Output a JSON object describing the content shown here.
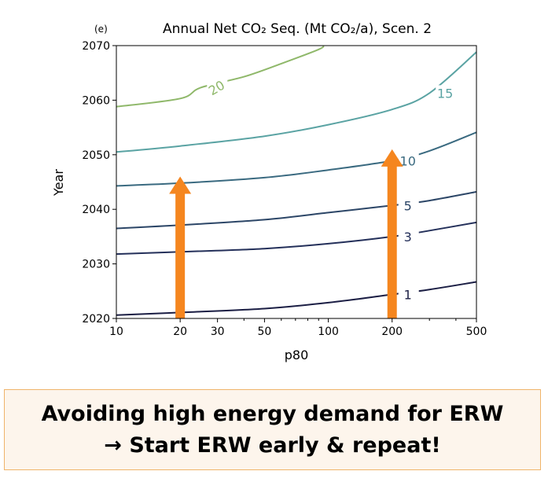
{
  "chart_data": {
    "type": "contour",
    "panel_label": "(e)",
    "title": "Annual Net CO₂ Seq. (Mt CO₂/a), Scen. 2",
    "xlabel": "p80",
    "ylabel": "Year",
    "xscale": "log",
    "xlim": [
      10,
      500
    ],
    "ylim": [
      2020,
      2070
    ],
    "xticks": [
      10,
      20,
      30,
      50,
      100,
      200,
      500
    ],
    "yticks": [
      2020,
      2030,
      2040,
      2050,
      2060,
      2070
    ],
    "contours": [
      {
        "level": "1",
        "color": "#1b1e44",
        "points": [
          [
            10,
            2020.6
          ],
          [
            20,
            2021.1
          ],
          [
            50,
            2021.8
          ],
          [
            100,
            2022.9
          ],
          [
            200,
            2024.4
          ],
          [
            300,
            2025.3
          ],
          [
            500,
            2026.7
          ]
        ]
      },
      {
        "level": "3",
        "color": "#24305a",
        "points": [
          [
            10,
            2031.8
          ],
          [
            20,
            2032.2
          ],
          [
            50,
            2032.8
          ],
          [
            100,
            2033.7
          ],
          [
            200,
            2035.0
          ],
          [
            300,
            2036.1
          ],
          [
            500,
            2037.6
          ]
        ]
      },
      {
        "level": "5",
        "color": "#2c4667",
        "points": [
          [
            10,
            2036.5
          ],
          [
            20,
            2037.1
          ],
          [
            50,
            2038.1
          ],
          [
            100,
            2039.4
          ],
          [
            200,
            2040.7
          ],
          [
            300,
            2041.6
          ],
          [
            500,
            2043.2
          ]
        ]
      },
      {
        "level": "10",
        "color": "#3a6a80",
        "points": [
          [
            10,
            2044.3
          ],
          [
            20,
            2044.8
          ],
          [
            50,
            2045.8
          ],
          [
            100,
            2047.2
          ],
          [
            200,
            2048.9
          ],
          [
            300,
            2050.7
          ],
          [
            500,
            2054.1
          ]
        ]
      },
      {
        "level": "15",
        "color": "#5aa3a3",
        "points": [
          [
            10,
            2050.5
          ],
          [
            20,
            2051.6
          ],
          [
            50,
            2053.4
          ],
          [
            100,
            2055.5
          ],
          [
            200,
            2058.3
          ],
          [
            300,
            2061.3
          ],
          [
            500,
            2068.8
          ]
        ]
      },
      {
        "level": "20",
        "color": "#8fb86a",
        "points": [
          [
            10,
            2058.8
          ],
          [
            20,
            2060.3
          ],
          [
            25,
            2062.3
          ],
          [
            40,
            2064.3
          ],
          [
            60,
            2066.7
          ],
          [
            90,
            2069.3
          ],
          [
            95,
            2070
          ]
        ]
      }
    ],
    "annotations": [
      {
        "type": "arrow",
        "color": "#f5861f",
        "x": 20,
        "y_from": 2020,
        "y_to": 2046
      },
      {
        "type": "arrow",
        "color": "#f5861f",
        "x": 200,
        "y_from": 2020,
        "y_to": 2051
      }
    ]
  },
  "caption": {
    "line1": "Avoiding high energy demand for ERW",
    "line2": "→ Start ERW early & repeat!"
  }
}
